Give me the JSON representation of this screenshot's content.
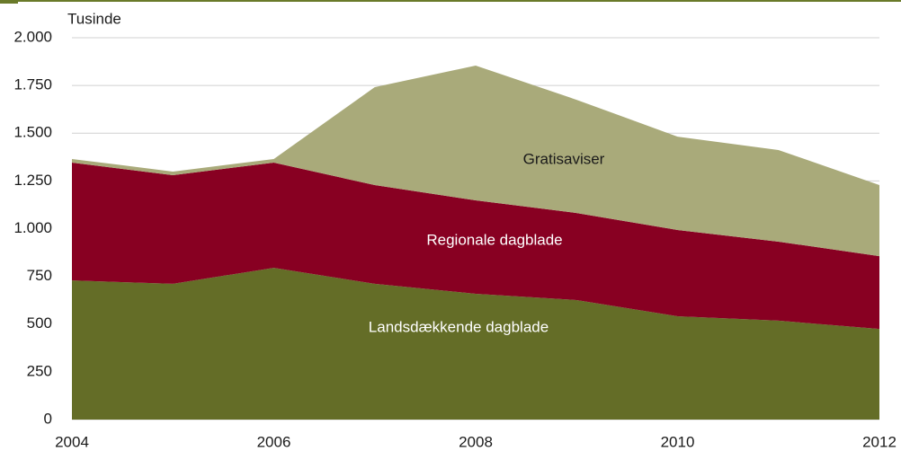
{
  "chart_data": {
    "type": "stacked_area",
    "y_label": "Tusinde",
    "x": [
      2004,
      2005,
      2006,
      2007,
      2008,
      2009,
      2010,
      2011,
      2012
    ],
    "series": [
      {
        "name": "Landsdækkende dagblade",
        "color": "#646d27",
        "values": [
          729,
          711,
          795,
          711,
          659,
          626,
          541,
          518,
          475
        ]
      },
      {
        "name": "Regionale dagblade",
        "color": "#880022",
        "values": [
          617,
          569,
          551,
          517,
          489,
          456,
          452,
          414,
          381
        ]
      },
      {
        "name": "Gratisaviser",
        "color": "#a9aa7a",
        "values": [
          19,
          19,
          19,
          513,
          706,
          593,
          489,
          480,
          372
        ]
      }
    ],
    "xlim": [
      2004,
      2012
    ],
    "xticks": [
      2004,
      2006,
      2008,
      2010,
      2012
    ],
    "ylim": [
      0,
      2000
    ],
    "yticks": [
      0,
      250,
      500,
      750,
      {
        "value": 1000,
        "label": "1.000"
      },
      {
        "value": 1250,
        "label": "1.250"
      },
      {
        "value": 1500,
        "label": "1.500"
      },
      {
        "value": 1750,
        "label": "1.750"
      },
      {
        "value": 2000,
        "label": "2.000"
      }
    ],
    "grid": true
  }
}
